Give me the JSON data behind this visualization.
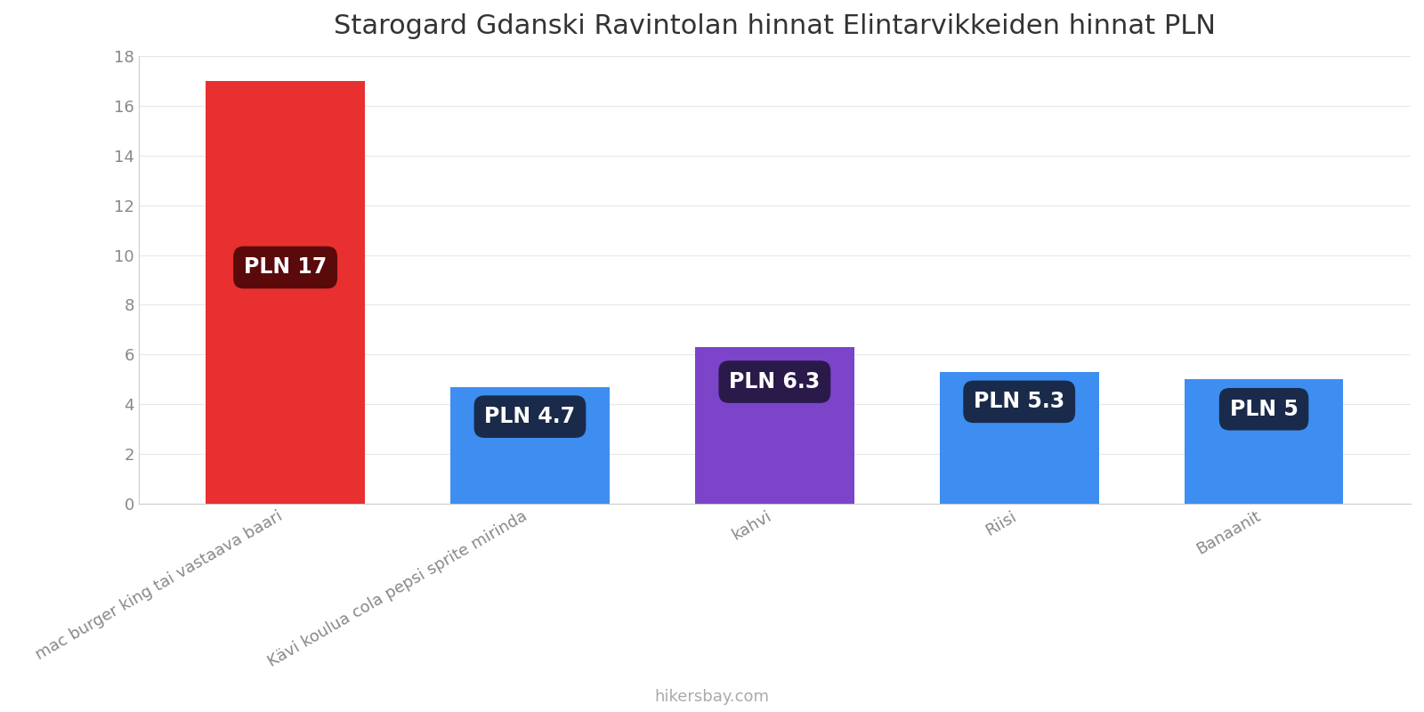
{
  "title": "Starogard Gdanski Ravintolan hinnat Elintarvikkeiden hinnat PLN",
  "categories": [
    "mac burger king tai vastaava baari",
    "Kävi koulua cola pepsi sprite mirinda",
    "kahvi",
    "Riisi",
    "Banaanit"
  ],
  "values": [
    17,
    4.7,
    6.3,
    5.3,
    5
  ],
  "labels": [
    "PLN 17",
    "PLN 4.7",
    "PLN 6.3",
    "PLN 5.3",
    "PLN 5"
  ],
  "bar_colors": [
    "#e83030",
    "#3d8ef0",
    "#7b44c9",
    "#3d8ef0",
    "#3d8ef0"
  ],
  "label_bg_colors": [
    "#5a0a0a",
    "#1a2a4a",
    "#2a1a4a",
    "#1a2a4a",
    "#1a2a4a"
  ],
  "label_y_positions": [
    9.5,
    3.5,
    4.9,
    4.1,
    3.8
  ],
  "ylim": [
    0,
    18
  ],
  "yticks": [
    0,
    2,
    4,
    6,
    8,
    10,
    12,
    14,
    16,
    18
  ],
  "footer": "hikersbay.com",
  "title_fontsize": 22,
  "label_fontsize": 17,
  "tick_fontsize": 13,
  "footer_fontsize": 13,
  "background_color": "#ffffff"
}
